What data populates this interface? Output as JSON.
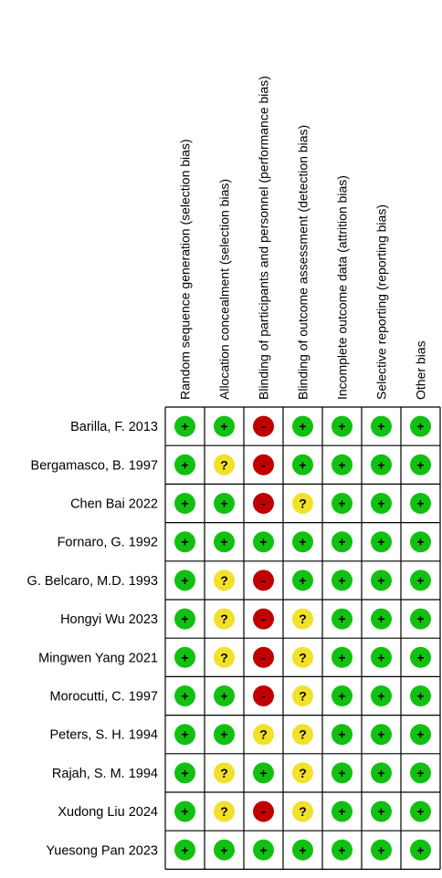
{
  "chart_data": {
    "type": "table",
    "title": "",
    "domains": [
      "Random sequence generation (selection bias)",
      "Allocation concealment (selection bias)",
      "Blinding of participants and personnel (performance bias)",
      "Blinding of outcome assessment (detection bias)",
      "Incomplete outcome data (attrition bias)",
      "Selective reporting (reporting bias)",
      "Other bias"
    ],
    "studies": [
      "Barilla, F. 2013",
      "Bergamasco, B. 1997",
      "Chen Bai 2022",
      "Fornaro, G. 1992",
      "G. Belcaro, M.D. 1993",
      "Hongyi Wu 2023",
      "Mingwen Yang 2021",
      "Morocutti, C. 1997",
      "Peters, S. H. 1994",
      "Rajah, S. M. 1994",
      "Xudong Liu 2024",
      "Yuesong Pan 2023"
    ],
    "ratings": [
      [
        "+",
        "+",
        "-",
        "+",
        "+",
        "+",
        "+"
      ],
      [
        "+",
        "?",
        "-",
        "+",
        "+",
        "+",
        "+"
      ],
      [
        "+",
        "+",
        "-",
        "?",
        "+",
        "+",
        "+"
      ],
      [
        "+",
        "+",
        "+",
        "+",
        "+",
        "+",
        "+"
      ],
      [
        "+",
        "?",
        "-",
        "+",
        "+",
        "+",
        "+"
      ],
      [
        "+",
        "?",
        "-",
        "?",
        "+",
        "+",
        "+"
      ],
      [
        "+",
        "?",
        "-",
        "?",
        "+",
        "+",
        "+"
      ],
      [
        "+",
        "+",
        "-",
        "?",
        "+",
        "+",
        "+"
      ],
      [
        "+",
        "+",
        "?",
        "?",
        "+",
        "+",
        "+"
      ],
      [
        "+",
        "?",
        "+",
        "?",
        "+",
        "+",
        "+"
      ],
      [
        "+",
        "?",
        "-",
        "?",
        "+",
        "+",
        "+"
      ],
      [
        "+",
        "+",
        "+",
        "+",
        "+",
        "+",
        "+"
      ]
    ],
    "colors": {
      "+": "#12c012",
      "?": "#f2e02a",
      "-": "#c00000",
      "grid": "#000000"
    }
  }
}
